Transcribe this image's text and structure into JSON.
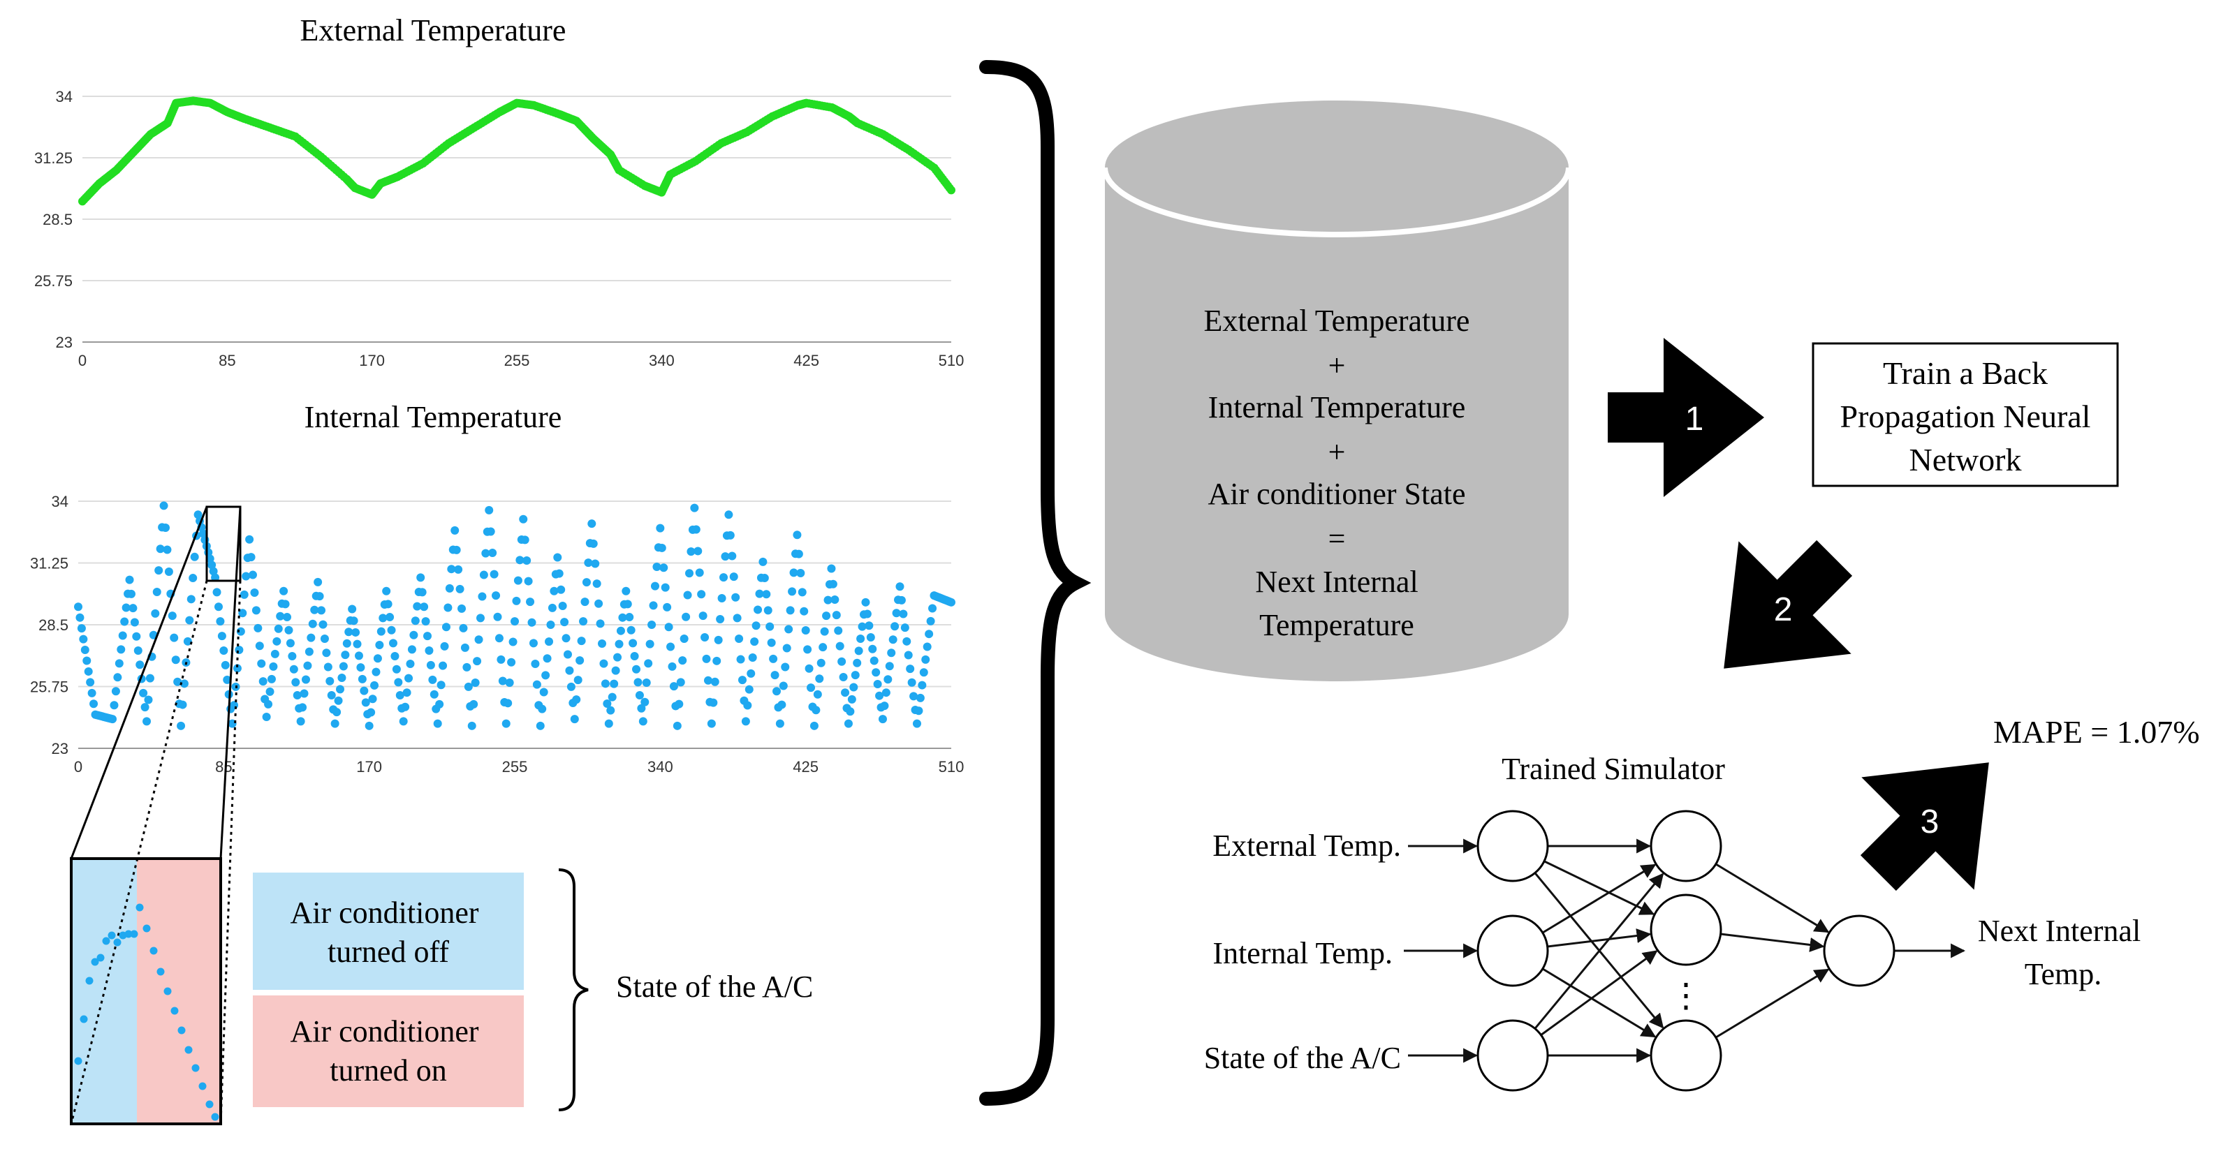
{
  "external_chart": {
    "title": "External Temperature",
    "y_ticks": [
      "34",
      "31.25",
      "28.5",
      "25.75",
      "23"
    ],
    "x_ticks": [
      "0",
      "85",
      "170",
      "255",
      "340",
      "425",
      "510"
    ],
    "color": "#22dd22"
  },
  "internal_chart": {
    "title": "Internal Temperature",
    "y_ticks": [
      "34",
      "31.25",
      "28.5",
      "25.75",
      "23"
    ],
    "x_ticks": [
      "0",
      "85",
      "170",
      "255",
      "340",
      "425",
      "510"
    ],
    "color": "#1fa8f0"
  },
  "chart_data": [
    {
      "type": "scatter",
      "title": "External Temperature",
      "xlim": [
        0,
        510
      ],
      "ylim": [
        23,
        34
      ],
      "grid": true,
      "series": [
        {
          "x": [
            0,
            10,
            20,
            30,
            40,
            50,
            55,
            65,
            75,
            85,
            95,
            110,
            125,
            140,
            155,
            160,
            170,
            175,
            185,
            200,
            215,
            230,
            245,
            255,
            265,
            280,
            290,
            300,
            310,
            315,
            330,
            340,
            345,
            360,
            375,
            390,
            405,
            420,
            425,
            440,
            450,
            455,
            470,
            485,
            500,
            510
          ],
          "y": [
            29.3,
            30.1,
            30.7,
            31.5,
            32.3,
            32.8,
            33.7,
            33.8,
            33.7,
            33.3,
            33.0,
            32.6,
            32.2,
            31.3,
            30.3,
            29.9,
            29.6,
            30.1,
            30.4,
            31.0,
            31.9,
            32.6,
            33.3,
            33.7,
            33.6,
            33.2,
            32.9,
            32.1,
            31.4,
            30.7,
            30.0,
            29.7,
            30.5,
            31.1,
            31.9,
            32.4,
            33.1,
            33.6,
            33.7,
            33.5,
            33.1,
            32.8,
            32.3,
            31.6,
            30.8,
            29.8
          ]
        }
      ]
    },
    {
      "type": "scatter",
      "title": "Internal Temperature",
      "xlim": [
        0,
        510
      ],
      "ylim": [
        23,
        34
      ],
      "grid": true,
      "series": [
        {
          "x": [
            0,
            10,
            20,
            30,
            40,
            50,
            60,
            70,
            80,
            90,
            100,
            110,
            120,
            130,
            140,
            150,
            160,
            170,
            180,
            190,
            200,
            210,
            220,
            230,
            240,
            250,
            260,
            270,
            280,
            290,
            300,
            310,
            320,
            330,
            340,
            350,
            360,
            370,
            380,
            390,
            400,
            410,
            420,
            430,
            440,
            450,
            460,
            470,
            480,
            490,
            500,
            510
          ],
          "y": [
            29.3,
            24.5,
            24.3,
            30.5,
            24.2,
            33.8,
            24.0,
            33.4,
            30.6,
            24.1,
            32.3,
            24.4,
            30.0,
            24.2,
            30.4,
            24.1,
            29.2,
            24.0,
            30.0,
            24.2,
            30.6,
            24.1,
            32.7,
            24.0,
            33.6,
            24.1,
            33.2,
            24.0,
            31.5,
            24.3,
            33.0,
            24.1,
            30.0,
            24.2,
            32.8,
            24.0,
            33.7,
            24.1,
            33.4,
            24.2,
            31.3,
            24.1,
            32.5,
            24.0,
            31.0,
            24.1,
            29.5,
            24.3,
            30.2,
            24.1,
            29.8,
            29.5
          ]
        }
      ]
    }
  ],
  "legend": {
    "off_label": "Air conditioner turned off",
    "on_label": "Air conditioner turned on",
    "state_label": "State of the A/C",
    "off_color": "#bde3f7",
    "on_color": "#f8c8c6"
  },
  "database": {
    "line1": "External Temperature",
    "plus1": "+",
    "line2": "Internal Temperature",
    "plus2": "+",
    "line3": "Air conditioner State",
    "equals": "=",
    "line4": "Next Internal",
    "line5": "Temperature"
  },
  "steps": {
    "step1": "1",
    "step2": "2",
    "step3": "3"
  },
  "train_box": {
    "line1": "Train a Back",
    "line2": "Propagation Neural",
    "line3": "Network"
  },
  "mape": "MAPE = 1.07%",
  "simulator": {
    "title": "Trained Simulator",
    "input1": "External Temp.",
    "input2": "Internal Temp.",
    "input3": "State of the A/C",
    "ellipsis": "⋮",
    "output_line1": "Next Internal",
    "output_line2": "Temp."
  }
}
